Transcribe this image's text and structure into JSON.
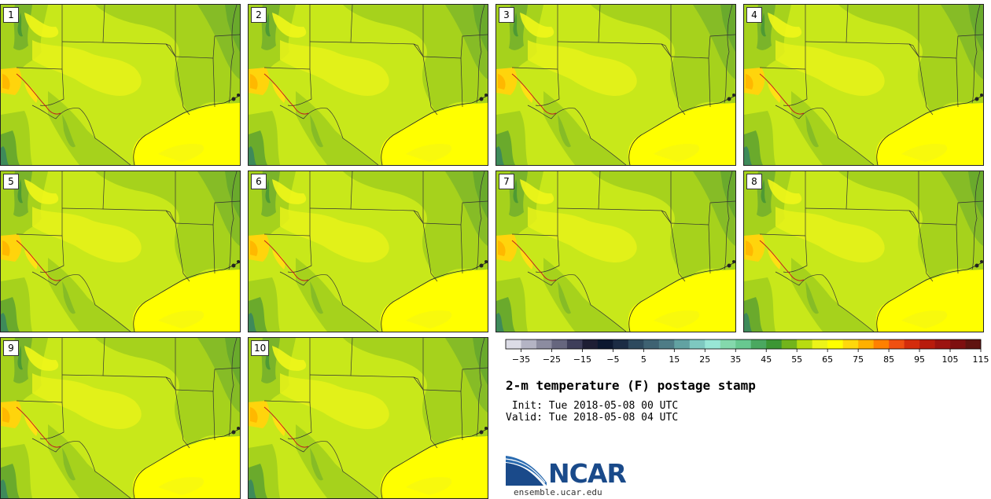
{
  "stamps": [
    {
      "label": "1"
    },
    {
      "label": "2"
    },
    {
      "label": "3"
    },
    {
      "label": "4"
    },
    {
      "label": "5"
    },
    {
      "label": "6"
    },
    {
      "label": "7"
    },
    {
      "label": "8"
    },
    {
      "label": "9"
    },
    {
      "label": "10"
    }
  ],
  "colorbar": {
    "colors": [
      "#dcdce6",
      "#b4b4c4",
      "#8c8ca0",
      "#66667e",
      "#3e3e5a",
      "#1e1e34",
      "#0c1830",
      "#1c2c44",
      "#2e4a5e",
      "#3e6272",
      "#4e7c86",
      "#62a2a2",
      "#7ec8c0",
      "#98e6d6",
      "#84d8ac",
      "#68c890",
      "#4aa860",
      "#3c9634",
      "#72b41c",
      "#b8dc10",
      "#ecf418",
      "#ffff00",
      "#ffd80c",
      "#ffb000",
      "#ff8000",
      "#f05010",
      "#d42c0c",
      "#b81c0c",
      "#9c1410",
      "#7e1010",
      "#601410"
    ],
    "tick_values": [
      -35,
      -25,
      -15,
      -5,
      5,
      15,
      25,
      35,
      45,
      55,
      65,
      75,
      85,
      95,
      105,
      115
    ],
    "tick_labels": [
      "−35",
      "−25",
      "−15",
      "−5",
      "5",
      "15",
      "25",
      "35",
      "45",
      "55",
      "65",
      "75",
      "85",
      "95",
      "105",
      "115"
    ]
  },
  "title": "2-m temperature (F) postage stamp",
  "init_line": " Init: Tue 2018-05-08 00 UTC",
  "valid_line": "Valid: Tue 2018-05-08 04 UTC",
  "logo": {
    "text": "NCAR",
    "url": "ensemble.ucar.edu"
  }
}
